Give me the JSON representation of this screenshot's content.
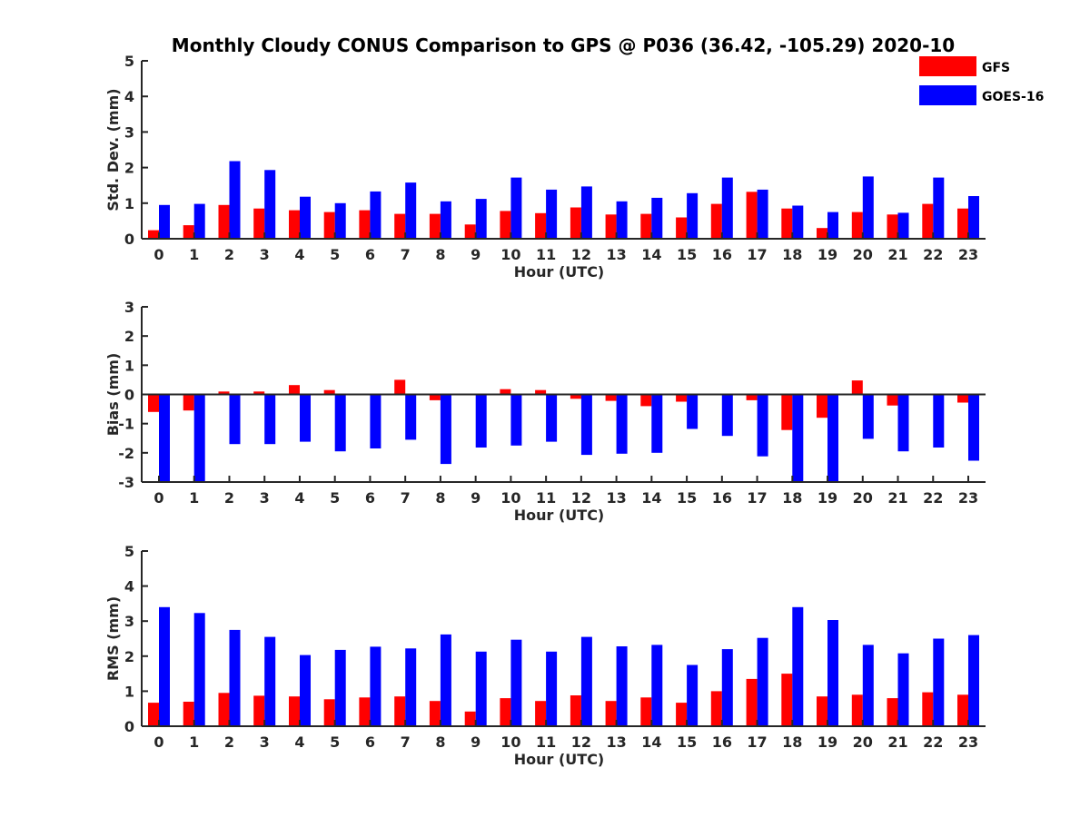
{
  "title": "Monthly Cloudy CONUS Comparison to GPS @ P036 (36.42, -105.29) 2020-10",
  "colors": {
    "GFS": "#ff0000",
    "GOES-16": "#0000ff"
  },
  "legend": {
    "position": "top-right",
    "items": [
      "GFS",
      "GOES-16"
    ]
  },
  "chart_data": [
    {
      "type": "bar",
      "xlabel": "Hour (UTC)",
      "ylabel": "Std. Dev. (mm)",
      "ylim": [
        0,
        5
      ],
      "yticks": [
        0,
        1,
        2,
        3,
        4,
        5
      ],
      "categories": [
        "0",
        "1",
        "2",
        "3",
        "4",
        "5",
        "6",
        "7",
        "8",
        "9",
        "10",
        "11",
        "12",
        "13",
        "14",
        "15",
        "16",
        "17",
        "18",
        "19",
        "20",
        "21",
        "22",
        "23"
      ],
      "series": [
        {
          "name": "GFS",
          "values": [
            0.24,
            0.38,
            0.95,
            0.85,
            0.8,
            0.75,
            0.8,
            0.7,
            0.7,
            0.4,
            0.78,
            0.72,
            0.88,
            0.68,
            0.7,
            0.6,
            0.98,
            1.32,
            0.85,
            0.3,
            0.75,
            0.68,
            0.98,
            0.85
          ]
        },
        {
          "name": "GOES-16",
          "values": [
            0.95,
            0.98,
            2.18,
            1.93,
            1.18,
            1.0,
            1.33,
            1.58,
            1.05,
            1.12,
            1.72,
            1.38,
            1.47,
            1.05,
            1.15,
            1.28,
            1.72,
            1.38,
            0.93,
            0.75,
            1.75,
            0.73,
            1.72,
            1.2
          ]
        }
      ]
    },
    {
      "type": "bar",
      "xlabel": "Hour (UTC)",
      "ylabel": "Bias (mm)",
      "ylim": [
        -3,
        3
      ],
      "yticks": [
        -3,
        -2,
        -1,
        0,
        1,
        2,
        3
      ],
      "categories": [
        "0",
        "1",
        "2",
        "3",
        "4",
        "5",
        "6",
        "7",
        "8",
        "9",
        "10",
        "11",
        "12",
        "13",
        "14",
        "15",
        "16",
        "17",
        "18",
        "19",
        "20",
        "21",
        "22",
        "23"
      ],
      "series": [
        {
          "name": "GFS",
          "values": [
            -0.6,
            -0.55,
            0.1,
            0.1,
            0.32,
            0.15,
            0.02,
            0.5,
            -0.2,
            -0.02,
            0.18,
            0.15,
            -0.15,
            -0.22,
            -0.4,
            -0.25,
            -0.02,
            -0.2,
            -1.22,
            -0.8,
            0.48,
            -0.38,
            0.0,
            -0.28
          ]
        },
        {
          "name": "GOES-16",
          "values": [
            -3.0,
            -3.0,
            -1.7,
            -1.7,
            -1.62,
            -1.95,
            -1.85,
            -1.55,
            -2.38,
            -1.82,
            -1.75,
            -1.62,
            -2.07,
            -2.03,
            -2.0,
            -1.18,
            -1.42,
            -2.12,
            -3.0,
            -2.98,
            -1.52,
            -1.95,
            -1.82,
            -2.27
          ]
        }
      ]
    },
    {
      "type": "bar",
      "xlabel": "Hour (UTC)",
      "ylabel": "RMS (mm)",
      "ylim": [
        0,
        5
      ],
      "yticks": [
        0,
        1,
        2,
        3,
        4,
        5
      ],
      "categories": [
        "0",
        "1",
        "2",
        "3",
        "4",
        "5",
        "6",
        "7",
        "8",
        "9",
        "10",
        "11",
        "12",
        "13",
        "14",
        "15",
        "16",
        "17",
        "18",
        "19",
        "20",
        "21",
        "22",
        "23"
      ],
      "series": [
        {
          "name": "GFS",
          "values": [
            0.67,
            0.7,
            0.95,
            0.87,
            0.85,
            0.77,
            0.82,
            0.85,
            0.72,
            0.42,
            0.8,
            0.72,
            0.88,
            0.72,
            0.82,
            0.67,
            1.0,
            1.35,
            1.5,
            0.85,
            0.9,
            0.8,
            0.97,
            0.9
          ]
        },
        {
          "name": "GOES-16",
          "values": [
            3.4,
            3.23,
            2.75,
            2.55,
            2.03,
            2.18,
            2.27,
            2.22,
            2.62,
            2.13,
            2.47,
            2.13,
            2.55,
            2.28,
            2.32,
            1.75,
            2.2,
            2.52,
            3.4,
            3.03,
            2.32,
            2.08,
            2.5,
            2.6
          ]
        }
      ]
    }
  ]
}
